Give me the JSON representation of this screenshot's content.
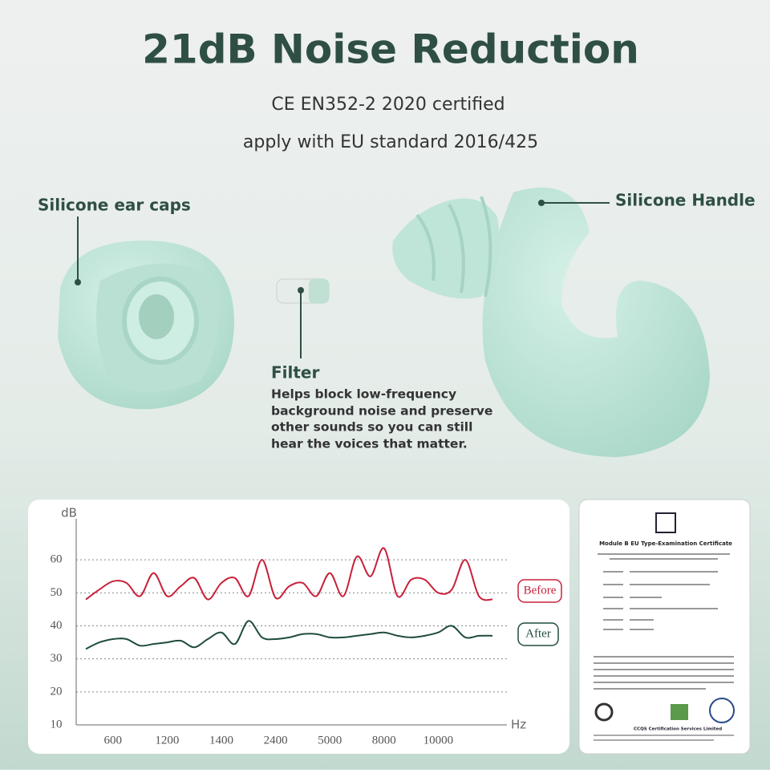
{
  "header": {
    "title": "21dB Noise Reduction",
    "subtitle_lines": [
      "CE EN352-2 2020 certified",
      "apply with EU standard 2016/425"
    ]
  },
  "callouts": {
    "ear_caps": "Silicone ear caps",
    "handle": "Silicone Handle",
    "filter": {
      "title": "Filter",
      "description": [
        "Helps block low-frequency",
        "background noise and preserve",
        "other sounds so you can still",
        "hear the voices that matter."
      ]
    }
  },
  "certificate": {
    "title": "Module B EU Type-Examination Certificate",
    "issuer": "CCQS Certification Services Limited"
  },
  "chart_data": {
    "type": "line",
    "y_label": "dB",
    "x_label": "Hz",
    "categories": [
      null,
      null,
      "600",
      null,
      null,
      null,
      "1200",
      null,
      null,
      null,
      "1400",
      null,
      null,
      null,
      "2400",
      null,
      null,
      null,
      "5000",
      null,
      null,
      null,
      "8000",
      null,
      null,
      null,
      "10000",
      null,
      null,
      null,
      null
    ],
    "series": [
      {
        "name": "Before",
        "color": "#c8203a",
        "values": [
          48,
          51,
          53.5,
          53,
          49,
          56,
          49,
          52,
          54.5,
          48,
          53,
          54.5,
          49,
          60,
          48.5,
          52,
          53,
          49,
          56,
          49,
          61,
          55,
          63.5,
          49,
          54,
          54,
          50,
          51,
          60,
          49,
          48
        ]
      },
      {
        "name": "After",
        "color": "#1f4d3b",
        "values": [
          33,
          35,
          36,
          36,
          34,
          34.5,
          35,
          35.5,
          33.5,
          36,
          38,
          34.5,
          41.5,
          36.5,
          36,
          36.5,
          37.5,
          37.5,
          36.5,
          36.5,
          37,
          37.5,
          38,
          37,
          36.5,
          37,
          38,
          40,
          36.5,
          37,
          37
        ]
      }
    ],
    "ylim": [
      10,
      70
    ],
    "yticks": [
      10,
      20,
      30,
      40,
      50,
      60
    ],
    "grid": true
  }
}
